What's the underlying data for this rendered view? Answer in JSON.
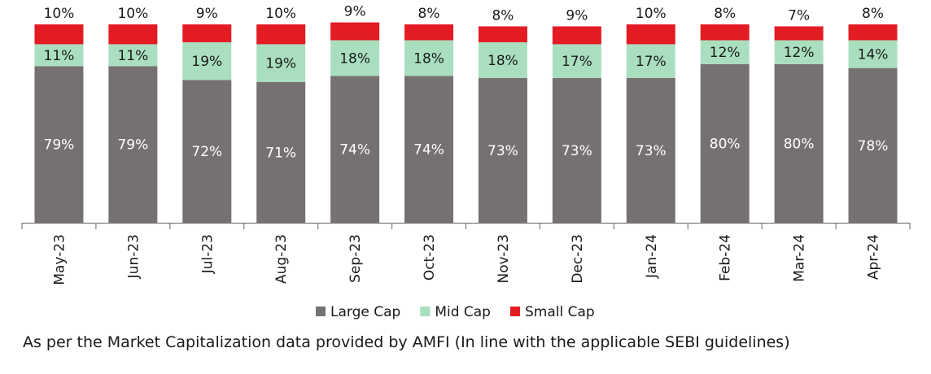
{
  "chart_data": {
    "type": "bar",
    "stacked": true,
    "ylim": [
      0,
      100
    ],
    "grid": false,
    "legend_position": "bottom",
    "categories": [
      "May-23",
      "Jun-23",
      "Jul-23",
      "Aug-23",
      "Sep-23",
      "Oct-23",
      "Nov-23",
      "Dec-23",
      "Jan-24",
      "Feb-24",
      "Mar-24",
      "Apr-24"
    ],
    "series": [
      {
        "name": "Large Cap",
        "color": "#767171",
        "values": [
          79,
          79,
          72,
          71,
          74,
          74,
          73,
          73,
          73,
          80,
          80,
          78
        ]
      },
      {
        "name": "Mid Cap",
        "color": "#a9dfbf",
        "values": [
          11,
          11,
          19,
          19,
          18,
          18,
          18,
          17,
          17,
          12,
          12,
          14
        ]
      },
      {
        "name": "Small Cap",
        "color": "#e31b23",
        "values": [
          10,
          10,
          9,
          10,
          9,
          8,
          8,
          9,
          10,
          8,
          7,
          8
        ]
      }
    ],
    "label_suffix": "%"
  },
  "footnote": "As per the Market Capitalization data provided by AMFI (In line with the applicable SEBI guidelines)"
}
